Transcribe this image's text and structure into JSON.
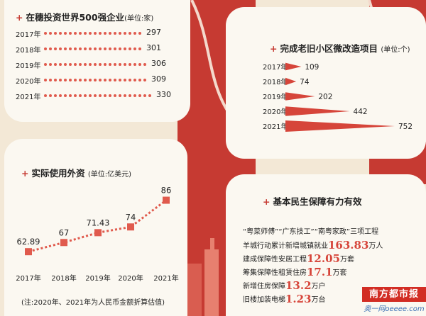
{
  "chart_data": [
    {
      "type": "bar",
      "title": "在穗投资世界500强企业",
      "unit": "(单位:家)",
      "categories": [
        "2017年",
        "2018年",
        "2019年",
        "2020年",
        "2021年"
      ],
      "values": [
        297,
        301,
        306,
        309,
        330
      ],
      "value_labels": [
        "297",
        "301",
        "306",
        "309",
        "330"
      ],
      "color": "#e05a4d"
    },
    {
      "type": "bar",
      "title": "完成老旧小区微改造项目",
      "unit": "(单位:个)",
      "categories": [
        "2017年",
        "2018年",
        "2019年",
        "2020年",
        "2021年"
      ],
      "values": [
        109,
        74,
        202,
        442,
        752
      ],
      "value_labels": [
        "109",
        "74",
        "202",
        "442",
        "752"
      ],
      "color": "#d6453a"
    },
    {
      "type": "line",
      "title": "实际使用外资",
      "unit": "(单位:亿美元)",
      "categories": [
        "2017年",
        "2018年",
        "2019年",
        "2020年",
        "2021年"
      ],
      "values": [
        62.89,
        67,
        71.43,
        74,
        86
      ],
      "value_labels": [
        "62.89",
        "67",
        "71.43",
        "74",
        "86"
      ],
      "color": "#e05a4d",
      "ylim": [
        55,
        90
      ]
    }
  ],
  "note": "(注:2020年、2021年为人民币金额折算估值)",
  "livelihood": {
    "title": "基本民生保障有力有效",
    "lines": [
      {
        "pre": "“粤菜师傅”“广东技工”“南粤家政”三项工程",
        "big": "",
        "post": ""
      },
      {
        "pre": "羊城行动累计新增城镇就业",
        "big": "163.83",
        "post": "万人"
      },
      {
        "pre": "建成保障性安居工程",
        "big": "12.05",
        "post": "万套"
      },
      {
        "pre": "筹集保障性租赁住房",
        "big": "17.1",
        "post": "万套"
      },
      {
        "pre": "新增住房保障",
        "big": "13.2",
        "post": "万户"
      },
      {
        "pre": "旧楼加装电梯",
        "big": "1.23",
        "post": "万台"
      }
    ]
  },
  "logo": {
    "text": "南方都市报",
    "site": "奥一网oeeee.com"
  },
  "colors": {
    "accent": "#c63a32",
    "bar": "#e05a4d",
    "panel": "#fbf8f1",
    "background": "#f3e8d6"
  }
}
